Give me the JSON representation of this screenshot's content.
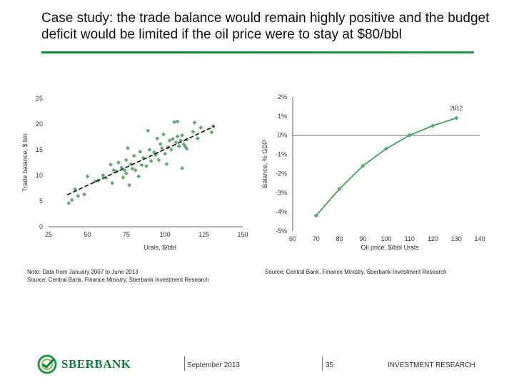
{
  "title": "Case study: the trade balance would remain highly positive and the budget deficit would be limited if the oil price were to stay at $80/bbl",
  "note_left": "Note: Data from January 2007 to June 2013",
  "source_left": "Source: Central Bank, Finance Ministry, Sberbank Investment Research",
  "source_right": "Source: Central Bank, Finance Ministry, Sberbank Investment Research",
  "footer": {
    "logo_text": "SBERBANK",
    "date": "September 2013",
    "page": "35",
    "section": "INVESTMENT RESEARCH"
  },
  "colors": {
    "marker": "#6aaa7a",
    "marker_edge": "#3f8a58",
    "line": "#2e9a4e",
    "trend": "#111111",
    "brand": "#0f7a3a"
  },
  "chart_data": [
    {
      "type": "scatter",
      "title": "",
      "xlabel": "Urals, $/bbl",
      "ylabel": "Trade balance, $ bln",
      "xlim": [
        25,
        150
      ],
      "ylim": [
        0,
        25
      ],
      "xticks": [
        "25",
        "50",
        "75",
        "100",
        "125",
        "150"
      ],
      "yticks": [
        "0",
        "5",
        "10",
        "15",
        "20",
        "25"
      ],
      "grid": false,
      "trendline": {
        "x": [
          37,
          132
        ],
        "y": [
          6.2,
          19.6
        ],
        "style": "dashed"
      },
      "points": [
        [
          38,
          4.6
        ],
        [
          40,
          5.2
        ],
        [
          42,
          7.3
        ],
        [
          44,
          6.0
        ],
        [
          48,
          6.3
        ],
        [
          50,
          9.8
        ],
        [
          55,
          8.8
        ],
        [
          57,
          9.0
        ],
        [
          60,
          10.0
        ],
        [
          62,
          9.5
        ],
        [
          65,
          12.1
        ],
        [
          66,
          8.5
        ],
        [
          67,
          11.0
        ],
        [
          69,
          10.8
        ],
        [
          70,
          12.5
        ],
        [
          72,
          11.5
        ],
        [
          73,
          9.6
        ],
        [
          74,
          11.0
        ],
        [
          75,
          13.0
        ],
        [
          75,
          10.4
        ],
        [
          76,
          15.3
        ],
        [
          77,
          8.1
        ],
        [
          78,
          12.2
        ],
        [
          79,
          11.3
        ],
        [
          80,
          13.8
        ],
        [
          81,
          11.0
        ],
        [
          83,
          9.8
        ],
        [
          84,
          14.6
        ],
        [
          85,
          12.0
        ],
        [
          86,
          13.4
        ],
        [
          88,
          11.8
        ],
        [
          89,
          18.7
        ],
        [
          90,
          15.0
        ],
        [
          91,
          12.8
        ],
        [
          93,
          14.5
        ],
        [
          94,
          14.0
        ],
        [
          95,
          17.2
        ],
        [
          96,
          13.0
        ],
        [
          97,
          16.1
        ],
        [
          98,
          15.3
        ],
        [
          99,
          18.0
        ],
        [
          100,
          14.2
        ],
        [
          101,
          12.2
        ],
        [
          102,
          15.5
        ],
        [
          103,
          16.8
        ],
        [
          104,
          15.0
        ],
        [
          105,
          17.1
        ],
        [
          106,
          20.4
        ],
        [
          107,
          16.4
        ],
        [
          108,
          17.6
        ],
        [
          108,
          20.5
        ],
        [
          109,
          15.7
        ],
        [
          110,
          16.8
        ],
        [
          111,
          17.8
        ],
        [
          111,
          11.4
        ],
        [
          112,
          16.1
        ],
        [
          113,
          15.6
        ],
        [
          114,
          15.2
        ],
        [
          114,
          17.0
        ],
        [
          118,
          18.5
        ],
        [
          119,
          20.3
        ],
        [
          121,
          17.2
        ],
        [
          123,
          19.3
        ],
        [
          130,
          18.4
        ],
        [
          131,
          19.6
        ]
      ]
    },
    {
      "type": "line",
      "title": "",
      "xlabel": "Oil price, $/bbl Urals",
      "ylabel": "Balance, % GDP",
      "xlim": [
        60,
        140
      ],
      "ylim": [
        -5,
        2
      ],
      "xticks": [
        "60",
        "70",
        "80",
        "90",
        "100",
        "110",
        "120",
        "130",
        "140"
      ],
      "yticks": [
        "2%",
        "1%",
        "0%",
        "-1%",
        "-2%",
        "-3%",
        "-4%",
        "-5%"
      ],
      "grid": false,
      "annotation": {
        "text": "2012",
        "x": 130,
        "y": 0.9
      },
      "series": [
        {
          "x": [
            70,
            80,
            90,
            100,
            110,
            120,
            130
          ],
          "y": [
            -4.2,
            -2.8,
            -1.6,
            -0.7,
            0.0,
            0.5,
            0.9
          ]
        }
      ]
    }
  ]
}
